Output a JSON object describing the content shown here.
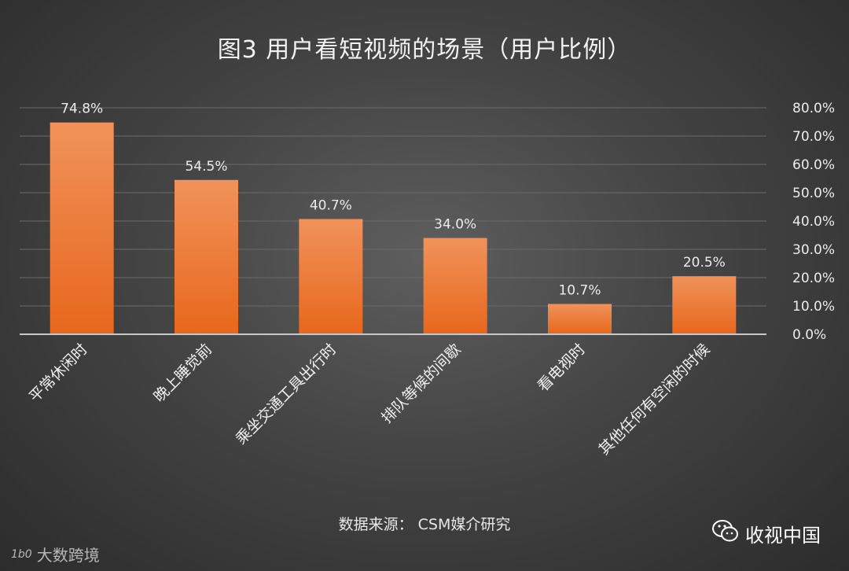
{
  "title": "图3  用户看短视频的场景（用户比例）",
  "source": "数据来源：  CSM媒介研究",
  "brand": {
    "name": "收视中国",
    "icon": "wechat-icon"
  },
  "watermark": {
    "logo": "1b0",
    "text": "大数跨境"
  },
  "colors": {
    "bar_top": "#f0925a",
    "bar_bottom": "#e8671c",
    "grid": "#6a6a6a",
    "axis": "#c8c8c8"
  },
  "chart_data": {
    "type": "bar",
    "title": "图3  用户看短视频的场景（用户比例）",
    "categories": [
      "平常休闲时",
      "晚上睡觉前",
      "乘坐交通工具出行时",
      "排队等候的间歇",
      "看电视时",
      "其他任何有空闲的时候"
    ],
    "values": [
      74.8,
      54.5,
      40.7,
      34.0,
      10.7,
      20.5
    ],
    "data_labels": [
      "74.8%",
      "54.5%",
      "40.7%",
      "34.0%",
      "10.7%",
      "20.5%"
    ],
    "y_ticks": [
      "0.0%",
      "10.0%",
      "20.0%",
      "30.0%",
      "40.0%",
      "50.0%",
      "60.0%",
      "70.0%",
      "80.0%"
    ],
    "ylim": [
      0,
      80
    ],
    "y_axis_side": "right",
    "grid": true,
    "legend": "none"
  }
}
